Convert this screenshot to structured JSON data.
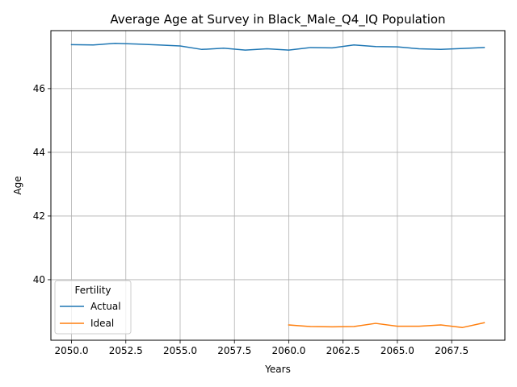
{
  "chart_data": {
    "type": "line",
    "title": "Average Age at Survey in Black_Male_Q4_IQ Population",
    "xlabel": "Years",
    "ylabel": "Age",
    "xlim": [
      2049.05,
      2069.95
    ],
    "ylim": [
      38.1,
      47.82
    ],
    "xticks": [
      2050.0,
      2052.5,
      2055.0,
      2057.5,
      2060.0,
      2062.5,
      2065.0,
      2067.5
    ],
    "xtick_labels": [
      "2050.0",
      "2052.5",
      "2055.0",
      "2057.5",
      "2060.0",
      "2062.5",
      "2065.0",
      "2067.5"
    ],
    "yticks": [
      40,
      42,
      44,
      46
    ],
    "ytick_labels": [
      "40",
      "42",
      "44",
      "46"
    ],
    "grid": true,
    "legend": {
      "title": "Fertility",
      "placement": "lower-left"
    },
    "series": [
      {
        "name": "Actual",
        "color": "#1f77b4",
        "x": [
          2050,
          2051,
          2052,
          2053,
          2054,
          2055,
          2056,
          2057,
          2058,
          2059,
          2060,
          2061,
          2062,
          2063,
          2064,
          2065,
          2066,
          2067,
          2068,
          2069
        ],
        "y": [
          47.38,
          47.37,
          47.42,
          47.4,
          47.37,
          47.34,
          47.23,
          47.27,
          47.21,
          47.25,
          47.21,
          47.29,
          47.28,
          47.37,
          47.32,
          47.31,
          47.25,
          47.23,
          47.26,
          47.29
        ]
      },
      {
        "name": "Ideal",
        "color": "#ff7f0e",
        "x": [
          2060,
          2061,
          2062,
          2063,
          2064,
          2065,
          2066,
          2067,
          2068,
          2069
        ],
        "y": [
          38.58,
          38.53,
          38.52,
          38.53,
          38.63,
          38.54,
          38.54,
          38.58,
          38.5,
          38.65
        ]
      }
    ]
  }
}
